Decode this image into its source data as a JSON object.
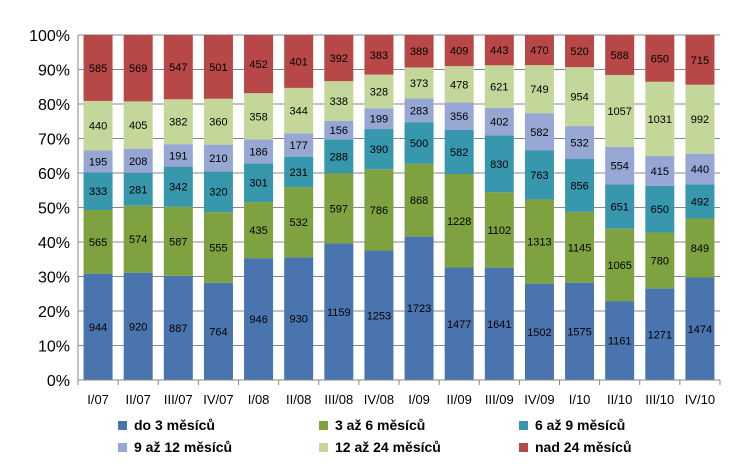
{
  "chart_data": {
    "type": "bar",
    "stacked": "percent",
    "categories": [
      "I/07",
      "II/07",
      "III/07",
      "IV/07",
      "I/08",
      "II/08",
      "III/08",
      "IV/08",
      "I/09",
      "II/09",
      "III/09",
      "IV/09",
      "I/10",
      "II/10",
      "III/10",
      "IV/10"
    ],
    "y_ticks": [
      "0%",
      "10%",
      "20%",
      "30%",
      "40%",
      "50%",
      "60%",
      "70%",
      "80%",
      "90%",
      "100%"
    ],
    "ylim": [
      0,
      100
    ],
    "grid": true,
    "legend_position": "bottom",
    "series": [
      {
        "name": "do 3 měsíců",
        "color": "#4a74ae",
        "values": [
          944,
          920,
          887,
          764,
          946,
          930,
          1159,
          1253,
          1723,
          1477,
          1641,
          1502,
          1575,
          1161,
          1271,
          1474
        ]
      },
      {
        "name": "3 až 6 měsíců",
        "color": "#7fa240",
        "values": [
          565,
          574,
          587,
          555,
          435,
          532,
          597,
          786,
          868,
          1228,
          1102,
          1313,
          1145,
          1065,
          780,
          849
        ]
      },
      {
        "name": "6 až 9 měsíců",
        "color": "#3797ad",
        "values": [
          333,
          281,
          342,
          320,
          301,
          231,
          288,
          390,
          500,
          582,
          830,
          763,
          856,
          651,
          650,
          492
        ]
      },
      {
        "name": "9 až 12 měsíců",
        "color": "#95a7d2",
        "values": [
          195,
          208,
          191,
          210,
          186,
          177,
          156,
          199,
          283,
          356,
          402,
          582,
          532,
          554,
          415,
          440
        ]
      },
      {
        "name": "12 až 24 měsíců",
        "color": "#c3d79b",
        "values": [
          440,
          405,
          382,
          360,
          358,
          344,
          338,
          328,
          373,
          478,
          621,
          749,
          954,
          1057,
          1031,
          992
        ]
      },
      {
        "name": "nad 24 měsíců",
        "color": "#b84848",
        "values": [
          585,
          569,
          547,
          501,
          452,
          401,
          392,
          383,
          389,
          409,
          443,
          470,
          520,
          588,
          650,
          715
        ]
      }
    ]
  }
}
